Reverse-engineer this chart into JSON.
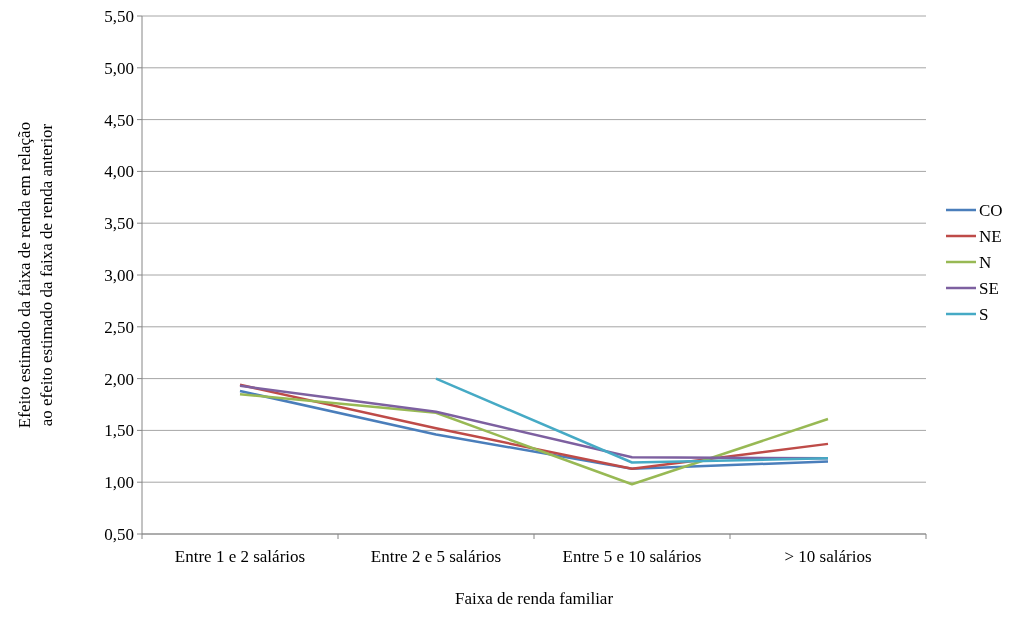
{
  "chart_data": {
    "type": "line",
    "xlabel": "Faixa de renda familiar",
    "ylabel": "Efeito estimado da faixa de renda em relação ao efeito estimado da faixa de renda anterior",
    "categories": [
      "Entre 1 e 2 salários",
      "Entre 2 e 5 salários",
      "Entre 5 e 10 salários",
      "> 10 salários"
    ],
    "series": [
      {
        "name": "CO",
        "color": "#4a7ebb",
        "values": [
          1.88,
          1.46,
          1.13,
          1.2
        ]
      },
      {
        "name": "NE",
        "color": "#be4b48",
        "values": [
          1.94,
          1.52,
          1.13,
          1.37
        ]
      },
      {
        "name": "N",
        "color": "#98b954",
        "values": [
          1.85,
          1.67,
          0.98,
          1.61
        ]
      },
      {
        "name": "SE",
        "color": "#7d60a0",
        "values": [
          1.93,
          1.68,
          1.24,
          1.23
        ]
      },
      {
        "name": "S",
        "color": "#46aac5",
        "values": [
          null,
          2.0,
          1.19,
          1.23
        ]
      }
    ],
    "ylim": [
      0.5,
      5.5
    ],
    "yticks": [
      {
        "value": 0.5,
        "label": "0,50"
      },
      {
        "value": 1,
        "label": "1,00"
      },
      {
        "value": 1.5,
        "label": "1,50"
      },
      {
        "value": 2,
        "label": "2,00"
      },
      {
        "value": 2.5,
        "label": "2,50"
      },
      {
        "value": 3,
        "label": "3,00"
      },
      {
        "value": 3.5,
        "label": "3,50"
      },
      {
        "value": 4,
        "label": "4,00"
      },
      {
        "value": 4.5,
        "label": "4,50"
      },
      {
        "value": 5,
        "label": "5,00"
      },
      {
        "value": 5.5,
        "label": "5,50"
      }
    ],
    "grid": "y",
    "legend": "right",
    "marker": "none"
  }
}
